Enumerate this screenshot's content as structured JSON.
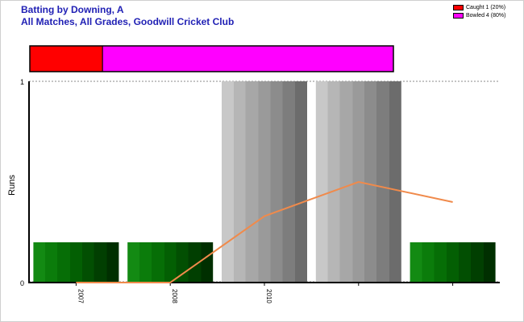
{
  "header": {
    "title": "Batting by Downing, A",
    "subtitle": "All Matches, All Grades, Goodwill Cricket Club"
  },
  "legend": [
    {
      "label": "Caught 1 (20%)",
      "color": "#ff0000"
    },
    {
      "label": "Bowled 4 (80%)",
      "color": "#ff00ff"
    }
  ],
  "chart_data": {
    "type": "bar",
    "title": "Batting by Downing, A",
    "subtitle": "All Matches, All Grades, Goodwill Cricket Club",
    "ylabel": "Runs",
    "xlabel": "",
    "ylim": [
      0,
      1
    ],
    "y_ticks": [
      "0",
      "1"
    ],
    "categories": [
      "2007",
      "2008",
      "2010",
      "",
      ""
    ],
    "bars": [
      {
        "category": "2007",
        "value": 0.2,
        "color": "green"
      },
      {
        "category": "2008",
        "value": 0.2,
        "color": "green"
      },
      {
        "category": "2010",
        "value": 1,
        "color": "grey"
      },
      {
        "category": "",
        "value": 1,
        "color": "grey"
      },
      {
        "category": "",
        "value": 0.2,
        "color": "green"
      }
    ],
    "line": {
      "color": "#f08a4b",
      "values": [
        0,
        0,
        0.33,
        0.5,
        0.4
      ]
    },
    "dismissals": [
      {
        "label": "Caught",
        "count": 1,
        "percent": 20,
        "color": "#ff0000"
      },
      {
        "label": "Bowled",
        "count": 4,
        "percent": 80,
        "color": "#ff00ff"
      }
    ],
    "grid": false,
    "legend_position": "top-right"
  }
}
